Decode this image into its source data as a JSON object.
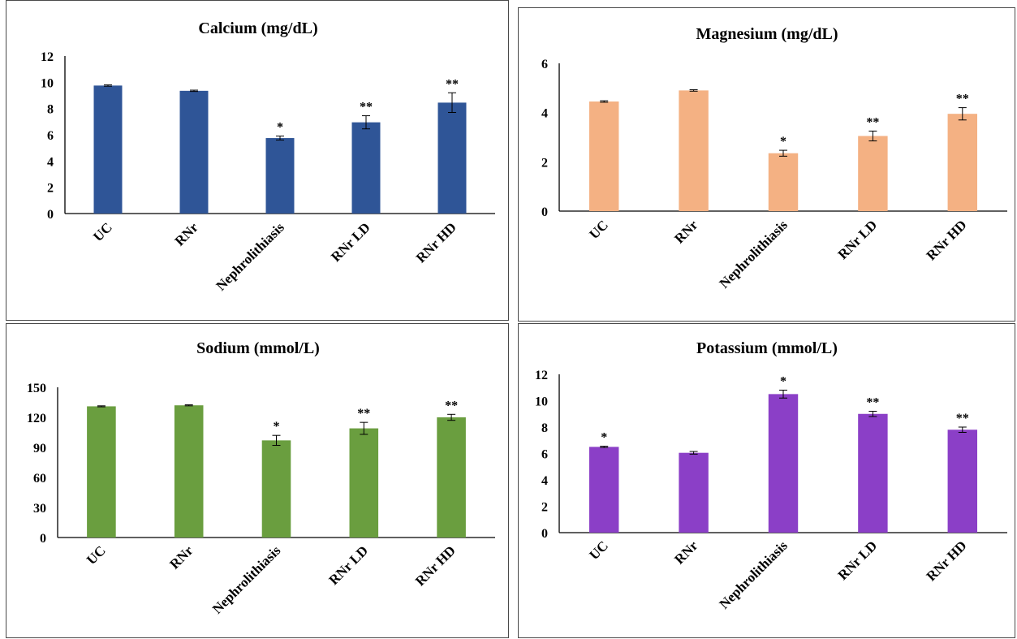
{
  "chart_data": [
    {
      "type": "bar",
      "title": "Calcium (mg/dL)",
      "color": "#2f5597",
      "categories": [
        "UC",
        "RNr",
        "Nephrolithiasis",
        "RNr LD",
        "RNr HD"
      ],
      "values": [
        9.75,
        9.35,
        5.75,
        6.95,
        8.45
      ],
      "errors": [
        0.05,
        0.05,
        0.15,
        0.5,
        0.75
      ],
      "annotations": [
        "",
        "",
        "*",
        "**",
        "**"
      ],
      "ylim": [
        0,
        12
      ],
      "yticks": [
        "0",
        "2",
        "4",
        "6",
        "8",
        "10",
        "12"
      ],
      "xlabel": "",
      "ylabel": ""
    },
    {
      "type": "bar",
      "title": "Magnesium (mg/dL)",
      "color": "#f4b183",
      "categories": [
        "UC",
        "RNr",
        "Nephrolithiasis",
        "RNr LD",
        "RNr HD"
      ],
      "values": [
        4.45,
        4.9,
        2.35,
        3.05,
        3.95
      ],
      "errors": [
        0.03,
        0.03,
        0.12,
        0.2,
        0.25
      ],
      "annotations": [
        "",
        "",
        "*",
        "**",
        "**"
      ],
      "ylim": [
        0,
        6
      ],
      "yticks": [
        "0",
        "2",
        "4",
        "6"
      ],
      "xlabel": "",
      "ylabel": ""
    },
    {
      "type": "bar",
      "title": "Sodium (mmol/L)",
      "color": "#6a9e3f",
      "categories": [
        "UC",
        "RNr",
        "Nephrolithiasis",
        "RNr LD",
        "RNr HD"
      ],
      "values": [
        131,
        132,
        97,
        109,
        120
      ],
      "errors": [
        0.5,
        0.5,
        5,
        6,
        3
      ],
      "annotations": [
        "",
        "",
        "*",
        "**",
        "**"
      ],
      "ylim": [
        0,
        150
      ],
      "yticks": [
        "0",
        "30",
        "60",
        "90",
        "120",
        "150"
      ],
      "xlabel": "",
      "ylabel": ""
    },
    {
      "type": "bar",
      "title": "Potassium (mmol/L)",
      "color": "#8b3fc7",
      "categories": [
        "UC",
        "RNr",
        "Nephrolithiasis",
        "RNr LD",
        "RNr HD"
      ],
      "values": [
        6.5,
        6.05,
        10.5,
        9.0,
        7.8
      ],
      "errors": [
        0.05,
        0.1,
        0.3,
        0.2,
        0.2
      ],
      "annotations": [
        "*",
        "",
        "*",
        "**",
        "**"
      ],
      "annotations_note": "",
      "ylim": [
        0,
        12
      ],
      "yticks": [
        "0",
        "2",
        "4",
        "6",
        "8",
        "10",
        "12"
      ],
      "xlabel": "",
      "ylabel": ""
    }
  ]
}
